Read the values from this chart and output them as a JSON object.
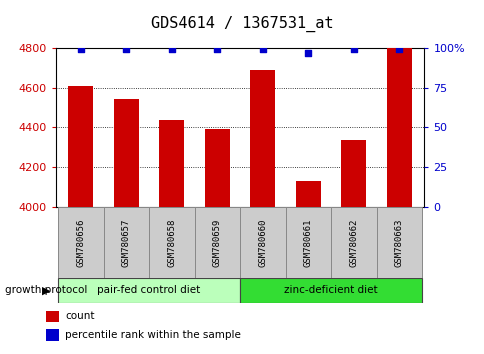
{
  "title": "GDS4614 / 1367531_at",
  "samples": [
    "GSM780656",
    "GSM780657",
    "GSM780658",
    "GSM780659",
    "GSM780660",
    "GSM780661",
    "GSM780662",
    "GSM780663"
  ],
  "counts": [
    4610,
    4545,
    4435,
    4390,
    4690,
    4130,
    4335,
    4800
  ],
  "percentile_ranks": [
    99,
    99,
    99,
    99,
    99,
    97,
    99,
    99
  ],
  "ylim_left": [
    4000,
    4800
  ],
  "ylim_right": [
    0,
    100
  ],
  "yticks_left": [
    4000,
    4200,
    4400,
    4600,
    4800
  ],
  "yticks_right": [
    0,
    25,
    50,
    75,
    100
  ],
  "bar_color": "#cc0000",
  "dot_color": "#0000cc",
  "bg_color": "#ffffff",
  "group1_label": "pair-fed control diet",
  "group2_label": "zinc-deficient diet",
  "group1_indices": [
    0,
    1,
    2,
    3
  ],
  "group2_indices": [
    4,
    5,
    6,
    7
  ],
  "group1_color": "#bbffbb",
  "group2_color": "#33dd33",
  "protocol_label": "growth protocol",
  "legend_count_label": "count",
  "legend_pct_label": "percentile rank within the sample",
  "title_fontsize": 11,
  "tick_fontsize": 8,
  "bar_width": 0.55,
  "sample_box_color": "#cccccc",
  "sample_box_edge": "#888888",
  "grid_yticks": [
    4200,
    4400,
    4600
  ]
}
